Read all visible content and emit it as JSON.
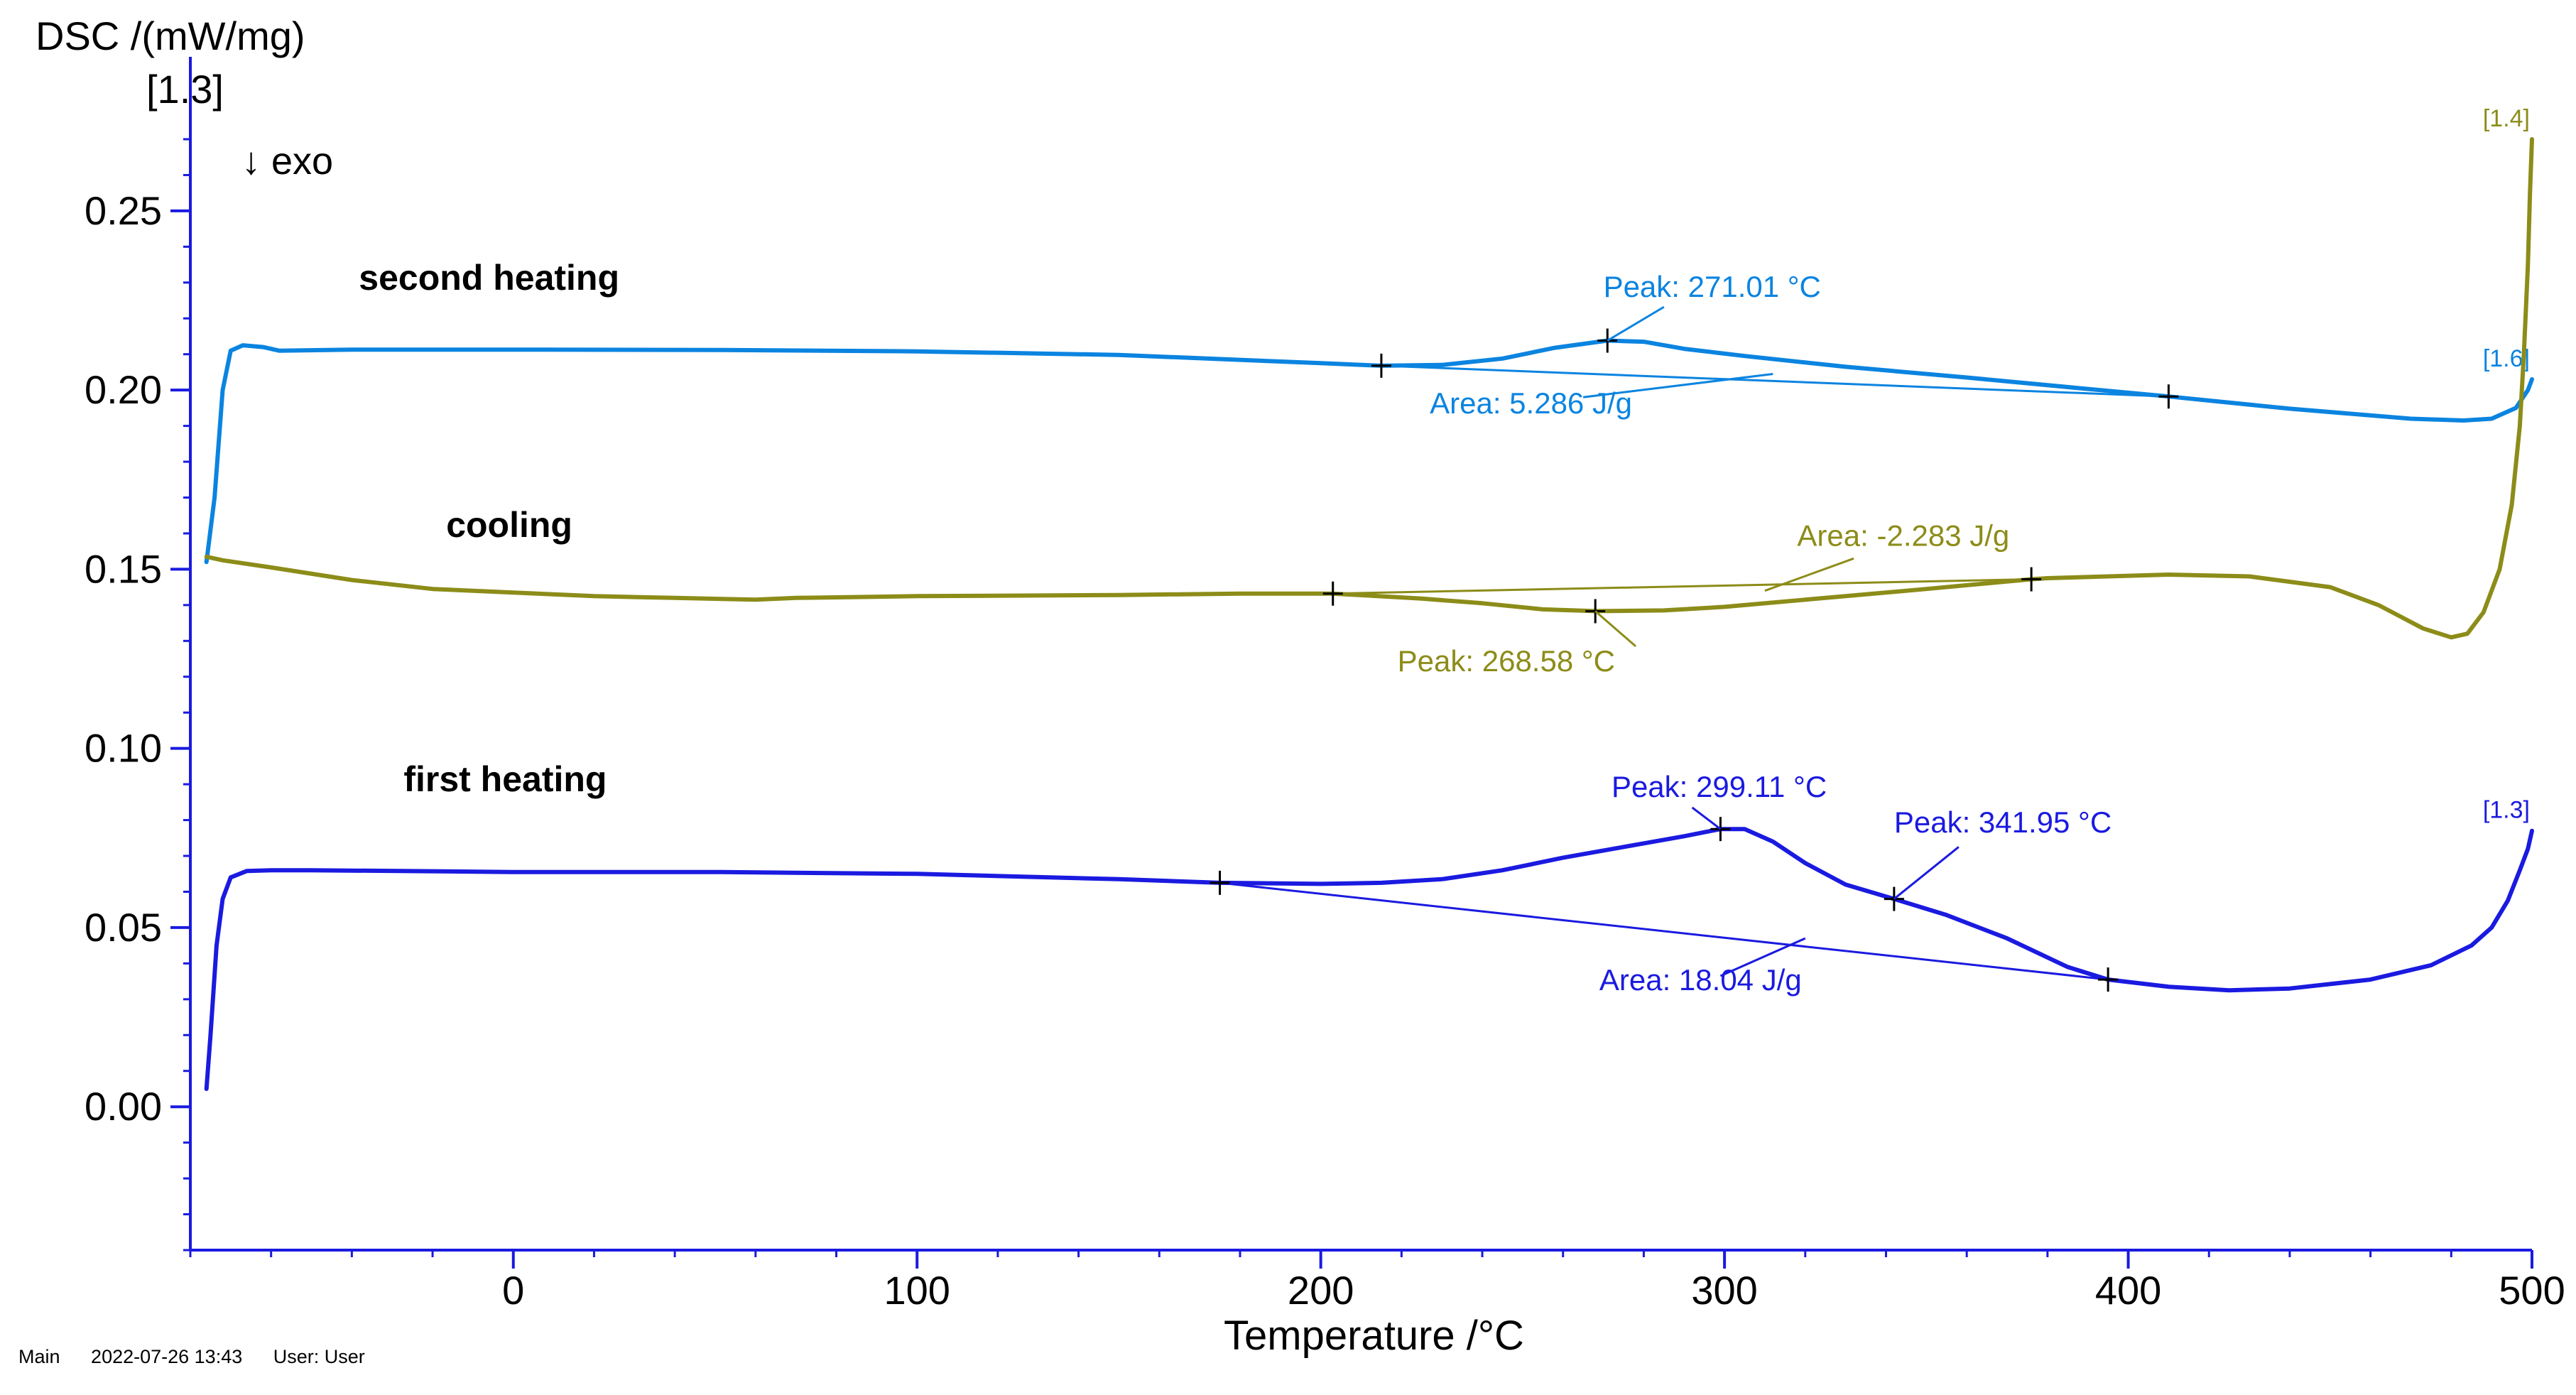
{
  "chart_data": {
    "type": "line",
    "ylabel": "DSC /(mW/mg)",
    "ylabel_sub": "[1.3]",
    "xlabel": "Temperature /°C",
    "exo_marker": "↓  exo",
    "xlim": [
      -80,
      500
    ],
    "ylim": [
      -0.04,
      0.27
    ],
    "x_ticks": [
      0,
      100,
      200,
      300,
      400,
      500
    ],
    "y_ticks": [
      "0.00",
      "0.05",
      "0.10",
      "0.15",
      "0.20",
      "0.25"
    ],
    "x_minor_step": 20,
    "y_minor_step": 0.01,
    "series": [
      {
        "name": "second heating",
        "curve_id": "[1.6]",
        "color": "#0b84e0",
        "label_pos": [
          -6,
          0.228
        ],
        "points": [
          [
            -76,
            0.152
          ],
          [
            -74,
            0.17
          ],
          [
            -72,
            0.2
          ],
          [
            -70,
            0.211
          ],
          [
            -67,
            0.2125
          ],
          [
            -62,
            0.212
          ],
          [
            -58,
            0.211
          ],
          [
            -40,
            0.2113
          ],
          [
            0,
            0.2113
          ],
          [
            50,
            0.2112
          ],
          [
            100,
            0.2108
          ],
          [
            150,
            0.2098
          ],
          [
            200,
            0.2075
          ],
          [
            215,
            0.2068
          ],
          [
            230,
            0.207
          ],
          [
            245,
            0.2088
          ],
          [
            258,
            0.2118
          ],
          [
            271,
            0.2138
          ],
          [
            280,
            0.2135
          ],
          [
            290,
            0.2115
          ],
          [
            305,
            0.2095
          ],
          [
            330,
            0.2065
          ],
          [
            360,
            0.2035
          ],
          [
            390,
            0.2003
          ],
          [
            410,
            0.1982
          ],
          [
            440,
            0.1948
          ],
          [
            470,
            0.192
          ],
          [
            483,
            0.1915
          ],
          [
            490,
            0.192
          ],
          [
            496,
            0.195
          ],
          [
            499,
            0.2
          ],
          [
            500,
            0.203
          ]
        ]
      },
      {
        "name": "cooling",
        "curve_id": "[1.4]",
        "color": "#8c8c19",
        "label_pos": [
          -1,
          0.159
        ],
        "points": [
          [
            500,
            0.27
          ],
          [
            499.5,
            0.255
          ],
          [
            499,
            0.235
          ],
          [
            498,
            0.21
          ],
          [
            497,
            0.19
          ],
          [
            495,
            0.168
          ],
          [
            492,
            0.15
          ],
          [
            488,
            0.138
          ],
          [
            484,
            0.132
          ],
          [
            480,
            0.131
          ],
          [
            473,
            0.1335
          ],
          [
            462,
            0.14
          ],
          [
            450,
            0.145
          ],
          [
            430,
            0.148
          ],
          [
            410,
            0.1485
          ],
          [
            380,
            0.1475
          ],
          [
            376,
            0.1472
          ],
          [
            350,
            0.1445
          ],
          [
            320,
            0.1415
          ],
          [
            300,
            0.1395
          ],
          [
            285,
            0.1385
          ],
          [
            268,
            0.1383
          ],
          [
            255,
            0.1388
          ],
          [
            240,
            0.1405
          ],
          [
            225,
            0.1418
          ],
          [
            203,
            0.1432
          ],
          [
            180,
            0.1432
          ],
          [
            150,
            0.1428
          ],
          [
            100,
            0.1425
          ],
          [
            70,
            0.142
          ],
          [
            60,
            0.1415
          ],
          [
            40,
            0.142
          ],
          [
            20,
            0.1425
          ],
          [
            0,
            0.1435
          ],
          [
            -20,
            0.1445
          ],
          [
            -40,
            0.147
          ],
          [
            -60,
            0.1505
          ],
          [
            -72,
            0.1525
          ],
          [
            -76,
            0.1535
          ]
        ]
      },
      {
        "name": "first heating",
        "curve_id": "[1.3]",
        "color": "#1a1ae0",
        "label_pos": [
          -2,
          0.088
        ],
        "points": [
          [
            -76,
            0.005
          ],
          [
            -75,
            0.02
          ],
          [
            -73.5,
            0.045
          ],
          [
            -72,
            0.058
          ],
          [
            -70,
            0.064
          ],
          [
            -66,
            0.0658
          ],
          [
            -60,
            0.066
          ],
          [
            -50,
            0.066
          ],
          [
            0,
            0.0655
          ],
          [
            50,
            0.0655
          ],
          [
            100,
            0.065
          ],
          [
            150,
            0.0635
          ],
          [
            175,
            0.0625
          ],
          [
            200,
            0.0622
          ],
          [
            215,
            0.0625
          ],
          [
            230,
            0.0635
          ],
          [
            245,
            0.066
          ],
          [
            260,
            0.0695
          ],
          [
            275,
            0.0725
          ],
          [
            290,
            0.0755
          ],
          [
            299,
            0.0775
          ],
          [
            305,
            0.0775
          ],
          [
            312,
            0.074
          ],
          [
            320,
            0.068
          ],
          [
            330,
            0.062
          ],
          [
            342,
            0.058
          ],
          [
            355,
            0.0535
          ],
          [
            370,
            0.047
          ],
          [
            385,
            0.039
          ],
          [
            395,
            0.0355
          ],
          [
            410,
            0.0335
          ],
          [
            425,
            0.0325
          ],
          [
            440,
            0.033
          ],
          [
            460,
            0.0355
          ],
          [
            475,
            0.0395
          ],
          [
            485,
            0.045
          ],
          [
            490,
            0.05
          ],
          [
            494,
            0.0575
          ],
          [
            497,
            0.066
          ],
          [
            499,
            0.072
          ],
          [
            500,
            0.077
          ]
        ]
      }
    ],
    "baselines": [
      {
        "series": "second heating",
        "from": [
          215,
          0.2068
        ],
        "to": [
          410,
          0.1982
        ]
      },
      {
        "series": "cooling",
        "from": [
          203,
          0.1432
        ],
        "to": [
          376,
          0.1472
        ]
      },
      {
        "series": "first heating",
        "from": [
          175,
          0.0625
        ],
        "to": [
          395,
          0.0355
        ]
      }
    ],
    "markers": [
      {
        "series": "second heating",
        "x": 215,
        "y": 0.2068
      },
      {
        "series": "second heating",
        "x": 271,
        "y": 0.2138
      },
      {
        "series": "second heating",
        "x": 410,
        "y": 0.1982
      },
      {
        "series": "cooling",
        "x": 203,
        "y": 0.1432
      },
      {
        "series": "cooling",
        "x": 268,
        "y": 0.1383
      },
      {
        "series": "cooling",
        "x": 376,
        "y": 0.1472
      },
      {
        "series": "first heating",
        "x": 175,
        "y": 0.0625
      },
      {
        "series": "first heating",
        "x": 299,
        "y": 0.0775
      },
      {
        "series": "first heating",
        "x": 342,
        "y": 0.058
      },
      {
        "series": "first heating",
        "x": 395,
        "y": 0.0355
      }
    ],
    "annotations": [
      {
        "series": "second heating",
        "text": "Peak: 271.01 °C",
        "text_at": [
          270,
          0.226
        ],
        "line": [
          [
            285,
            0.2232
          ],
          [
            271,
            0.2138
          ]
        ]
      },
      {
        "series": "second heating",
        "text": "Area: 5.286 J/g",
        "text_at": [
          227,
          0.1935
        ],
        "line": [
          [
            265,
            0.198
          ],
          [
            312,
            0.2045
          ]
        ]
      },
      {
        "series": "cooling",
        "text": "Area: -2.283 J/g",
        "text_at": [
          318,
          0.1565
        ],
        "line": [
          [
            332,
            0.153
          ],
          [
            310,
            0.144
          ]
        ]
      },
      {
        "series": "cooling",
        "text": "Peak: 268.58 °C",
        "text_at": [
          219,
          0.1215
        ],
        "line": [
          [
            278,
            0.1285
          ],
          [
            268,
            0.1383
          ]
        ]
      },
      {
        "series": "first heating",
        "text": "Peak: 299.11 °C",
        "text_at": [
          272,
          0.0865
        ],
        "line": [
          [
            292,
            0.0835
          ],
          [
            299,
            0.0775
          ]
        ]
      },
      {
        "series": "first heating",
        "text": "Peak: 341.95 °C",
        "text_at": [
          342,
          0.0765
        ],
        "line": [
          [
            358,
            0.0725
          ],
          [
            342,
            0.058
          ]
        ]
      },
      {
        "series": "first heating",
        "text": "Area: 18.04 J/g",
        "text_at": [
          269,
          0.0325
        ],
        "line": [
          [
            299,
            0.0365
          ],
          [
            320,
            0.047
          ]
        ]
      }
    ]
  },
  "footer": {
    "view": "Main",
    "timestamp": "2022-07-26 13:43",
    "user": "User: User"
  }
}
